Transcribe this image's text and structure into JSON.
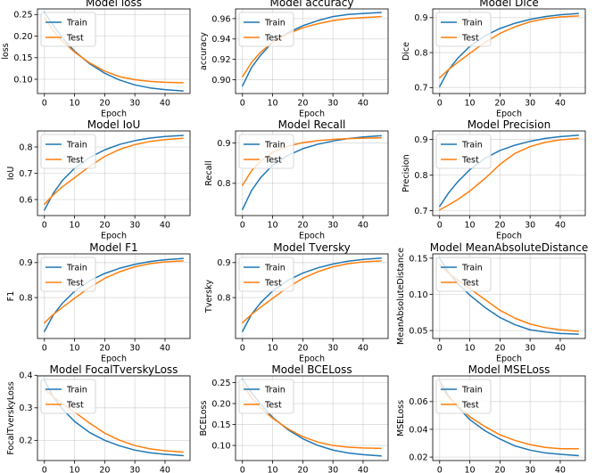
{
  "figure": {
    "background": "#ffffff"
  },
  "legend_labels": [
    "Train",
    "Test"
  ],
  "series_colors": {
    "Train": "#1f77b4",
    "Test": "#ff7f0e"
  },
  "chart_data": [
    {
      "type": "line",
      "title": "Model loss",
      "xlabel": "Epoch",
      "ylabel": "loss",
      "xlim": [
        -2.3,
        48.3
      ],
      "xticks": [
        0,
        10,
        20,
        30,
        40
      ],
      "ylim": [
        0.067,
        0.263
      ],
      "yticks": [
        0.1,
        0.15,
        0.2,
        0.25
      ],
      "ytick_labels": [
        "0.10",
        "0.15",
        "0.20",
        "0.25"
      ],
      "grid": true,
      "legend": "upper-left",
      "series": [
        {
          "name": "Train",
          "x": [
            0,
            3,
            6,
            10,
            15,
            20,
            25,
            30,
            35,
            40,
            46
          ],
          "y": [
            0.255,
            0.224,
            0.196,
            0.165,
            0.136,
            0.114,
            0.098,
            0.087,
            0.08,
            0.076,
            0.073
          ]
        },
        {
          "name": "Test",
          "x": [
            0,
            3,
            6,
            10,
            15,
            20,
            25,
            30,
            35,
            40,
            46
          ],
          "y": [
            0.243,
            0.212,
            0.188,
            0.163,
            0.138,
            0.119,
            0.106,
            0.099,
            0.095,
            0.093,
            0.092
          ]
        }
      ]
    },
    {
      "type": "line",
      "title": "Model accuracy",
      "xlabel": "Epoch",
      "ylabel": "accuracy",
      "xlim": [
        -2.3,
        48.3
      ],
      "xticks": [
        0,
        10,
        20,
        30,
        40
      ],
      "ylim": [
        0.8865,
        0.9695
      ],
      "yticks": [
        0.9,
        0.92,
        0.94,
        0.96
      ],
      "ytick_labels": [
        "0.90",
        "0.92",
        "0.94",
        "0.96"
      ],
      "grid": true,
      "legend": "upper-left",
      "series": [
        {
          "name": "Train",
          "x": [
            0,
            3,
            6,
            10,
            15,
            20,
            25,
            30,
            35,
            40,
            46
          ],
          "y": [
            0.894,
            0.912,
            0.924,
            0.937,
            0.946,
            0.953,
            0.958,
            0.962,
            0.964,
            0.965,
            0.966
          ]
        },
        {
          "name": "Test",
          "x": [
            0,
            3,
            6,
            10,
            15,
            20,
            25,
            30,
            35,
            40,
            46
          ],
          "y": [
            0.903,
            0.917,
            0.927,
            0.937,
            0.945,
            0.951,
            0.955,
            0.958,
            0.96,
            0.961,
            0.962
          ]
        }
      ]
    },
    {
      "type": "line",
      "title": "Model Dice",
      "xlabel": "Epoch",
      "ylabel": "Dice",
      "xlim": [
        -2.3,
        48.3
      ],
      "xticks": [
        0,
        10,
        20,
        30,
        40
      ],
      "ylim": [
        0.683,
        0.925
      ],
      "yticks": [
        0.7,
        0.8,
        0.9
      ],
      "ytick_labels": [
        "0.7",
        "0.8",
        "0.9"
      ],
      "grid": true,
      "legend": "upper-left",
      "series": [
        {
          "name": "Train",
          "x": [
            0,
            3,
            6,
            10,
            15,
            20,
            25,
            30,
            35,
            40,
            46
          ],
          "y": [
            0.703,
            0.751,
            0.784,
            0.818,
            0.848,
            0.869,
            0.884,
            0.895,
            0.903,
            0.908,
            0.912
          ]
        },
        {
          "name": "Test",
          "x": [
            0,
            3,
            6,
            10,
            15,
            20,
            25,
            30,
            35,
            40,
            46
          ],
          "y": [
            0.728,
            0.752,
            0.772,
            0.798,
            0.829,
            0.855,
            0.874,
            0.888,
            0.897,
            0.902,
            0.905
          ]
        }
      ]
    },
    {
      "type": "line",
      "title": "Model IoU",
      "xlabel": "Epoch",
      "ylabel": "IoU",
      "xlim": [
        -2.3,
        48.3
      ],
      "xticks": [
        0,
        10,
        20,
        30,
        40
      ],
      "ylim": [
        0.539,
        0.861
      ],
      "yticks": [
        0.6,
        0.7,
        0.8
      ],
      "ytick_labels": [
        "0.6",
        "0.7",
        "0.8"
      ],
      "grid": true,
      "legend": "upper-left",
      "series": [
        {
          "name": "Train",
          "x": [
            0,
            3,
            6,
            10,
            15,
            20,
            25,
            30,
            35,
            40,
            46
          ],
          "y": [
            0.56,
            0.625,
            0.673,
            0.719,
            0.76,
            0.789,
            0.81,
            0.824,
            0.834,
            0.84,
            0.844
          ]
        },
        {
          "name": "Test",
          "x": [
            0,
            3,
            6,
            10,
            15,
            20,
            25,
            30,
            35,
            40,
            46
          ],
          "y": [
            0.582,
            0.618,
            0.649,
            0.683,
            0.726,
            0.764,
            0.791,
            0.809,
            0.821,
            0.828,
            0.833
          ]
        }
      ]
    },
    {
      "type": "line",
      "title": "Model Recall",
      "xlabel": "Epoch",
      "ylabel": "Recall",
      "xlim": [
        -2.3,
        48.3
      ],
      "xticks": [
        0,
        10,
        20,
        30,
        40
      ],
      "ylim": [
        0.72,
        0.93
      ],
      "yticks": [
        0.8,
        0.9
      ],
      "ytick_labels": [
        "0.8",
        "0.9"
      ],
      "grid": true,
      "legend": "upper-left",
      "series": [
        {
          "name": "Train",
          "x": [
            0,
            3,
            6,
            10,
            15,
            20,
            25,
            30,
            35,
            40,
            46
          ],
          "y": [
            0.735,
            0.782,
            0.814,
            0.845,
            0.869,
            0.886,
            0.897,
            0.905,
            0.911,
            0.915,
            0.918
          ]
        },
        {
          "name": "Test",
          "x": [
            0,
            3,
            6,
            10,
            15,
            20,
            25,
            30,
            35,
            40,
            46
          ],
          "y": [
            0.795,
            0.831,
            0.855,
            0.877,
            0.892,
            0.901,
            0.906,
            0.909,
            0.911,
            0.912,
            0.913
          ]
        }
      ]
    },
    {
      "type": "line",
      "title": "Model Precision",
      "xlabel": "Epoch",
      "ylabel": "Precision",
      "xlim": [
        -2.3,
        48.3
      ],
      "xticks": [
        0,
        10,
        20,
        30,
        40
      ],
      "ylim": [
        0.686,
        0.924
      ],
      "yticks": [
        0.7,
        0.8,
        0.9
      ],
      "ytick_labels": [
        "0.7",
        "0.8",
        "0.9"
      ],
      "grid": true,
      "legend": "upper-left",
      "series": [
        {
          "name": "Train",
          "x": [
            0,
            3,
            6,
            10,
            15,
            20,
            25,
            30,
            35,
            40,
            46
          ],
          "y": [
            0.712,
            0.75,
            0.781,
            0.815,
            0.847,
            0.869,
            0.884,
            0.895,
            0.903,
            0.908,
            0.912
          ]
        },
        {
          "name": "Test",
          "x": [
            0,
            3,
            6,
            10,
            15,
            20,
            25,
            30,
            35,
            40,
            46
          ],
          "y": [
            0.702,
            0.716,
            0.731,
            0.755,
            0.79,
            0.83,
            0.861,
            0.88,
            0.892,
            0.899,
            0.903
          ]
        }
      ]
    },
    {
      "type": "line",
      "title": "Model F1",
      "xlabel": "Epoch",
      "ylabel": "F1",
      "xlim": [
        -2.3,
        48.3
      ],
      "xticks": [
        0,
        10,
        20,
        30,
        40
      ],
      "ylim": [
        0.683,
        0.925
      ],
      "yticks": [
        0.8,
        0.9
      ],
      "ytick_labels": [
        "0.8",
        "0.9"
      ],
      "grid": true,
      "legend": "upper-left",
      "series": [
        {
          "name": "Train",
          "x": [
            0,
            3,
            6,
            10,
            15,
            20,
            25,
            30,
            35,
            40,
            46
          ],
          "y": [
            0.703,
            0.751,
            0.784,
            0.818,
            0.848,
            0.869,
            0.884,
            0.895,
            0.903,
            0.908,
            0.912
          ]
        },
        {
          "name": "Test",
          "x": [
            0,
            3,
            6,
            10,
            15,
            20,
            25,
            30,
            35,
            40,
            46
          ],
          "y": [
            0.728,
            0.752,
            0.772,
            0.798,
            0.829,
            0.855,
            0.874,
            0.888,
            0.897,
            0.902,
            0.905
          ]
        }
      ]
    },
    {
      "type": "line",
      "title": "Model Tversky",
      "xlabel": "Epoch",
      "ylabel": "Tversky",
      "xlim": [
        -2.3,
        48.3
      ],
      "xticks": [
        0,
        10,
        20,
        30,
        40
      ],
      "ylim": [
        0.683,
        0.925
      ],
      "yticks": [
        0.8,
        0.9
      ],
      "ytick_labels": [
        "0.8",
        "0.9"
      ],
      "grid": true,
      "legend": "upper-left",
      "series": [
        {
          "name": "Train",
          "x": [
            0,
            3,
            6,
            10,
            15,
            20,
            25,
            30,
            35,
            40,
            46
          ],
          "y": [
            0.703,
            0.752,
            0.785,
            0.819,
            0.849,
            0.87,
            0.885,
            0.896,
            0.904,
            0.909,
            0.913
          ]
        },
        {
          "name": "Test",
          "x": [
            0,
            3,
            6,
            10,
            15,
            20,
            25,
            30,
            35,
            40,
            46
          ],
          "y": [
            0.728,
            0.752,
            0.772,
            0.798,
            0.829,
            0.855,
            0.874,
            0.888,
            0.897,
            0.902,
            0.905
          ]
        }
      ]
    },
    {
      "type": "line",
      "title": "Model MeanAbsoluteDistance",
      "xlabel": "Epoch",
      "ylabel": "MeanAbsoluteDistance",
      "xlim": [
        -2.3,
        48.3
      ],
      "xticks": [
        0,
        10,
        20,
        30,
        40
      ],
      "ylim": [
        0.039,
        0.156
      ],
      "yticks": [
        0.05,
        0.1,
        0.15
      ],
      "ytick_labels": [
        "0.05",
        "0.10",
        "0.15"
      ],
      "grid": true,
      "legend": "upper-left",
      "series": [
        {
          "name": "Train",
          "x": [
            0,
            3,
            6,
            10,
            15,
            20,
            25,
            30,
            35,
            40,
            46
          ],
          "y": [
            0.15,
            0.13,
            0.115,
            0.099,
            0.082,
            0.068,
            0.058,
            0.051,
            0.048,
            0.046,
            0.045
          ]
        },
        {
          "name": "Test",
          "x": [
            0,
            3,
            6,
            10,
            15,
            20,
            25,
            30,
            35,
            40,
            46
          ],
          "y": [
            0.141,
            0.129,
            0.12,
            0.108,
            0.093,
            0.078,
            0.067,
            0.059,
            0.054,
            0.051,
            0.049
          ]
        }
      ]
    },
    {
      "type": "line",
      "title": "Model FocalTverskyLoss",
      "xlabel": "Epoch",
      "ylabel": "FocalTverskyLoss",
      "xlim": [
        -2.3,
        48.3
      ],
      "xticks": [
        0,
        10,
        20,
        30,
        40
      ],
      "ylim": [
        0.138,
        0.398
      ],
      "yticks": [
        0.2,
        0.3,
        0.4
      ],
      "ytick_labels": [
        "0.2",
        "0.3",
        "0.4"
      ],
      "grid": true,
      "legend": "upper-left",
      "series": [
        {
          "name": "Train",
          "x": [
            0,
            3,
            6,
            10,
            15,
            20,
            25,
            30,
            35,
            40,
            46
          ],
          "y": [
            0.385,
            0.332,
            0.296,
            0.258,
            0.224,
            0.2,
            0.183,
            0.17,
            0.162,
            0.157,
            0.153
          ]
        },
        {
          "name": "Test",
          "x": [
            0,
            3,
            6,
            10,
            15,
            20,
            25,
            30,
            35,
            40,
            46
          ],
          "y": [
            0.357,
            0.333,
            0.313,
            0.287,
            0.253,
            0.222,
            0.2,
            0.184,
            0.174,
            0.168,
            0.164
          ]
        }
      ]
    },
    {
      "type": "line",
      "title": "Model BCELoss",
      "xlabel": "Epoch",
      "ylabel": "BCELoss",
      "xlim": [
        -2.3,
        48.3
      ],
      "xticks": [
        0,
        10,
        20,
        30,
        40
      ],
      "ylim": [
        0.064,
        0.266
      ],
      "yticks": [
        0.1,
        0.15,
        0.2,
        0.25
      ],
      "ytick_labels": [
        "0.10",
        "0.15",
        "0.20",
        "0.25"
      ],
      "grid": true,
      "legend": "upper-left",
      "series": [
        {
          "name": "Train",
          "x": [
            0,
            3,
            6,
            10,
            15,
            20,
            25,
            30,
            35,
            40,
            46
          ],
          "y": [
            0.258,
            0.226,
            0.199,
            0.167,
            0.138,
            0.116,
            0.1,
            0.089,
            0.082,
            0.078,
            0.075
          ]
        },
        {
          "name": "Test",
          "x": [
            0,
            3,
            6,
            10,
            15,
            20,
            25,
            30,
            35,
            40,
            46
          ],
          "y": [
            0.246,
            0.214,
            0.19,
            0.165,
            0.14,
            0.121,
            0.108,
            0.1,
            0.096,
            0.094,
            0.093
          ]
        }
      ]
    },
    {
      "type": "line",
      "title": "Model MSELoss",
      "xlabel": "Epoch",
      "ylabel": "MSELoss",
      "xlim": [
        -2.3,
        48.3
      ],
      "xticks": [
        0,
        10,
        20,
        30,
        40
      ],
      "ylim": [
        0.0175,
        0.0785
      ],
      "yticks": [
        0.02,
        0.04,
        0.06
      ],
      "ytick_labels": [
        "0.02",
        "0.04",
        "0.06"
      ],
      "grid": true,
      "legend": "upper-left",
      "series": [
        {
          "name": "Train",
          "x": [
            0,
            3,
            6,
            10,
            15,
            20,
            25,
            30,
            35,
            40,
            46
          ],
          "y": [
            0.075,
            0.064,
            0.056,
            0.047,
            0.039,
            0.033,
            0.028,
            0.025,
            0.023,
            0.022,
            0.021
          ]
        },
        {
          "name": "Test",
          "x": [
            0,
            3,
            6,
            10,
            15,
            20,
            25,
            30,
            35,
            40,
            46
          ],
          "y": [
            0.072,
            0.063,
            0.057,
            0.049,
            0.042,
            0.036,
            0.032,
            0.029,
            0.027,
            0.026,
            0.026
          ]
        }
      ]
    }
  ]
}
